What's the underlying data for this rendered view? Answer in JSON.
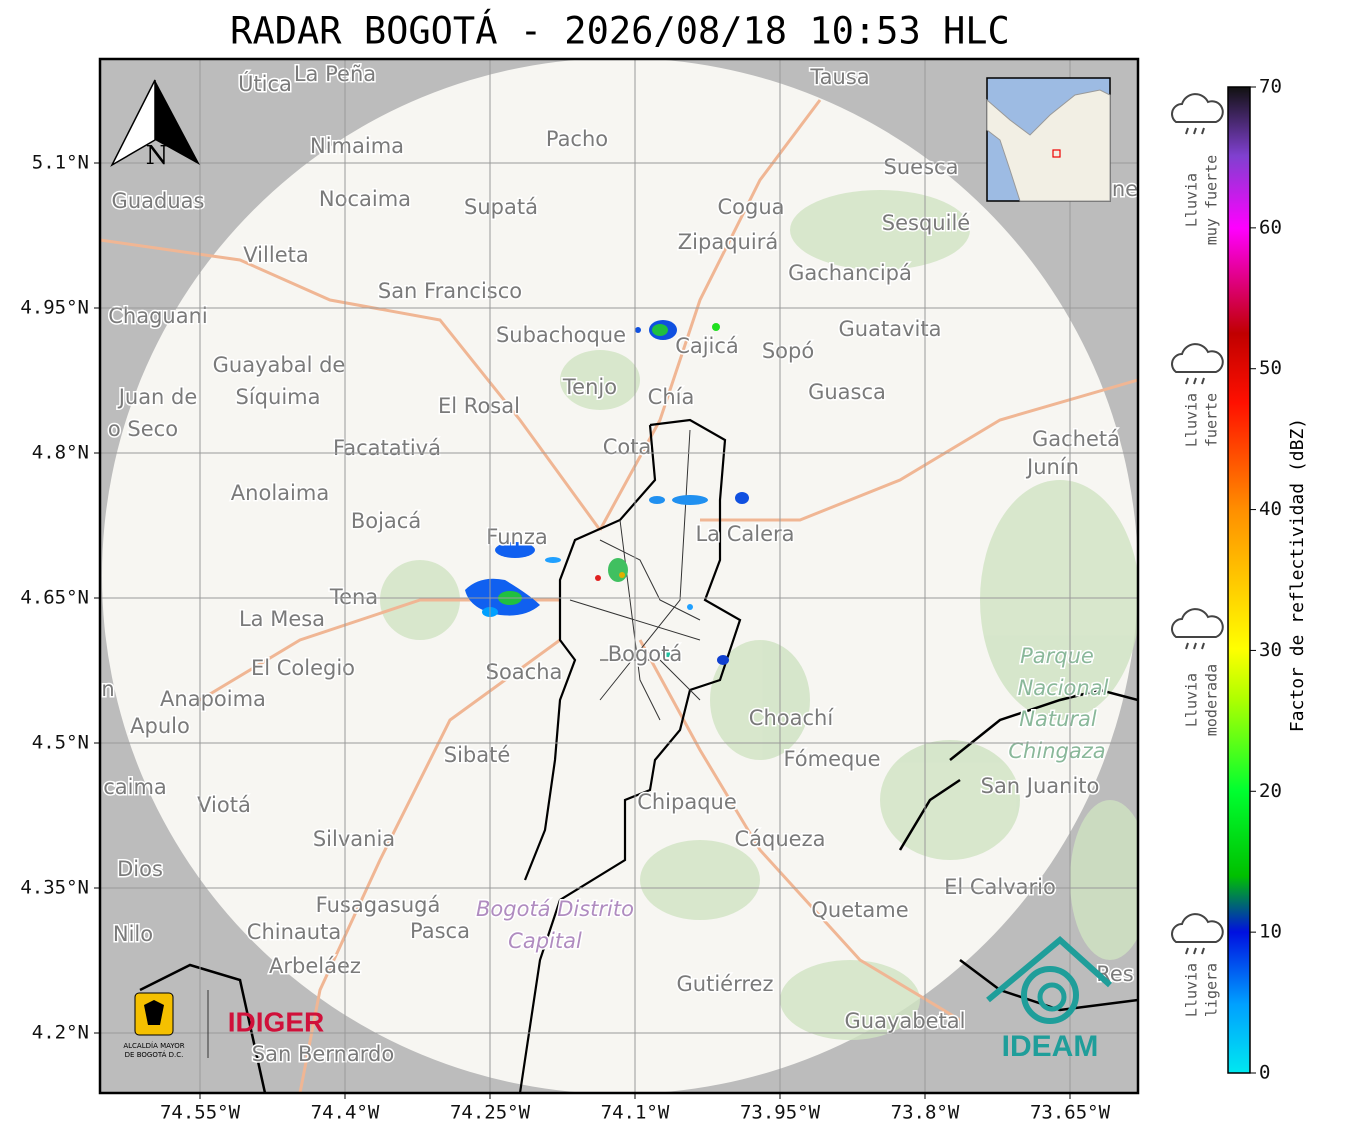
{
  "title": "RADAR BOGOTÁ - 2026/08/18 10:53 HLC",
  "map": {
    "lon_ticks": [
      {
        "value": -74.55,
        "label": "74.55°W"
      },
      {
        "value": -74.4,
        "label": "74.4°W"
      },
      {
        "value": -74.25,
        "label": "74.25°W"
      },
      {
        "value": -74.1,
        "label": "74.1°W"
      },
      {
        "value": -73.95,
        "label": "73.95°W"
      },
      {
        "value": -73.8,
        "label": "73.8°W"
      },
      {
        "value": -73.65,
        "label": "73.65°W"
      }
    ],
    "lat_ticks": [
      {
        "value": 4.2,
        "label": "4.2°N"
      },
      {
        "value": 4.35,
        "label": "4.35°N"
      },
      {
        "value": 4.5,
        "label": "4.5°N"
      },
      {
        "value": 4.65,
        "label": "4.65°N"
      },
      {
        "value": 4.8,
        "label": "4.8°N"
      },
      {
        "value": 4.95,
        "label": "4.95°N"
      },
      {
        "value": 5.1,
        "label": "5.1°N"
      }
    ],
    "north_label": "N",
    "place_labels": [
      "Útica",
      "La Peña",
      "Tausa",
      "Pacho",
      "Nimaima",
      "Guaduas",
      "Nocaima",
      "Supatá",
      "Cogua",
      "Suesca",
      "Sesquilé",
      "ne",
      "Zipaquirá",
      "Villeta",
      "Gachancipá",
      "San Francisco",
      "Chaguani",
      "Guatavita",
      "Subachoque",
      "Cajicá",
      "Sopó",
      "Guayabal de",
      "Síquima",
      "Juan de",
      "o Seco",
      "Tenjo",
      "Chía",
      "Guasca",
      "El Rosal",
      "Facatativá",
      "Cota",
      "Gachetá",
      "Junín",
      "Anolaima",
      "Bojacá",
      "Funza",
      "La Calera",
      "Tena",
      "La Mesa",
      "El Colegio",
      "Soacha",
      "Bogotá",
      "n",
      "Anapoima",
      "Apulo",
      "Choachí",
      "Sibaté",
      "Fómeque",
      "San Juanito",
      "caima",
      "Viotá",
      "Chipaque",
      "Silvania",
      "Cáqueza",
      "Dios",
      "El Calvario",
      "Fusagasugá",
      "Quetame",
      "Nilo",
      "Chinauta",
      "Pasca",
      "Arbeláez",
      "Gutiérrez",
      "Res",
      "Guayabetal",
      "San Bernardo",
      "Parque",
      "Nacional",
      "Natural",
      "Chingaza",
      "Bogotá Distrito",
      "Capital"
    ],
    "logos": {
      "alcaldia": [
        "ALCALDÍA MAYOR",
        "DE BOGOTÁ D.C."
      ],
      "idiger": "IDIGER",
      "ideam": "IDEAM"
    }
  },
  "colorbar": {
    "label": "Factor de reflectividad (dBZ)",
    "ylim": [
      0,
      70
    ],
    "ticks": [
      0,
      10,
      20,
      30,
      40,
      50,
      60,
      70
    ]
  },
  "rain_legend": [
    [
      "Lluvia",
      "muy fuerte"
    ],
    [
      "Lluvia",
      "fuerte"
    ],
    [
      "Lluvia",
      "moderada"
    ],
    [
      "Lluvia",
      "ligera"
    ]
  ]
}
